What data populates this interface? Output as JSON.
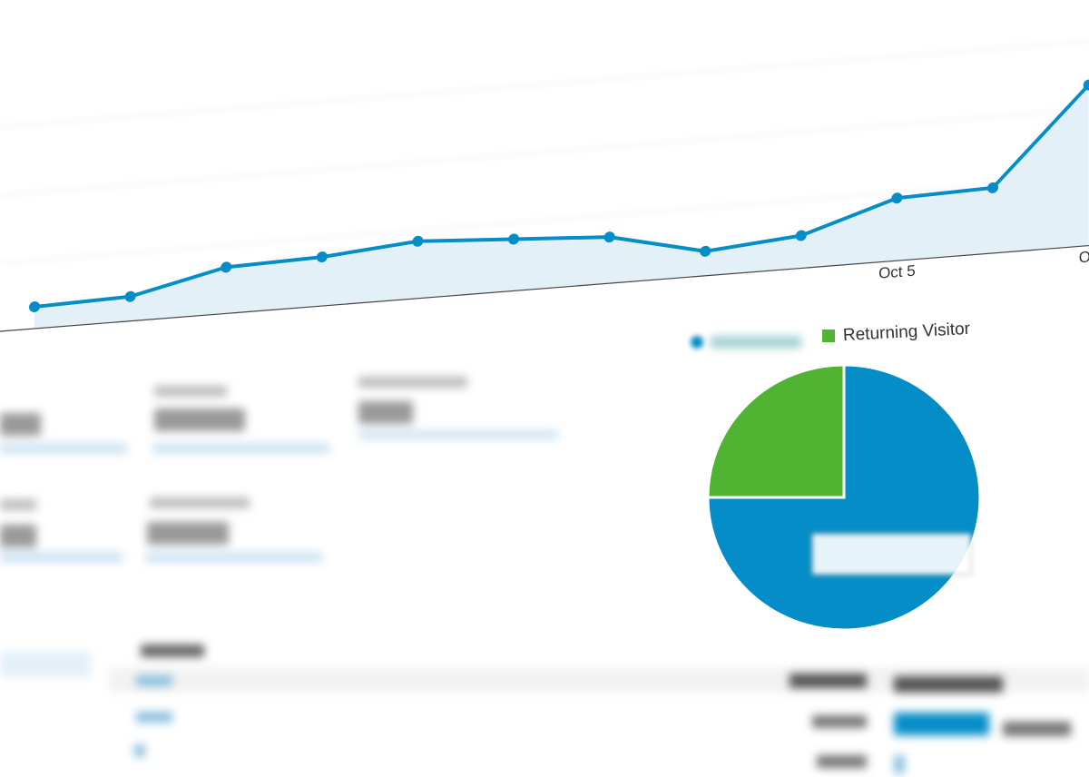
{
  "line_chart": {
    "x_labels": [
      null,
      null,
      null,
      null,
      null,
      null,
      null,
      null,
      null,
      "Oct 5",
      null,
      "Oc"
    ],
    "values": [
      8,
      9,
      17,
      18,
      21,
      19,
      17,
      9,
      12,
      23,
      24,
      59
    ],
    "ylim": [
      0,
      100
    ],
    "color": "#058dc7",
    "area_color": "#e4f0f8"
  },
  "pie": {
    "legend": [
      null,
      "Returning Visitor"
    ],
    "values": [
      75,
      25
    ],
    "colors": [
      "#058dc7",
      "#50b432"
    ]
  }
}
